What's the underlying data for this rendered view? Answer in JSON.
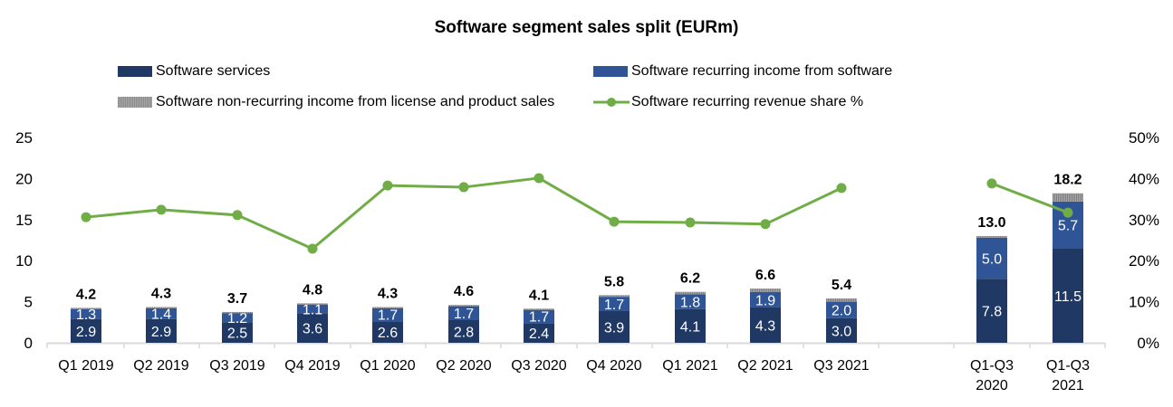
{
  "chart_data": {
    "type": "bar",
    "stacked": true,
    "title": "Software segment sales split (EURm)",
    "categories": [
      "Q1 2019",
      "Q2 2019",
      "Q3 2019",
      "Q4 2019",
      "Q1 2020",
      "Q2 2020",
      "Q3 2020",
      "Q4 2020",
      "Q1 2021",
      "Q2 2021",
      "Q3 2021",
      "Q1-Q3 2020",
      "Q1-Q3 2021"
    ],
    "series": [
      {
        "name": "Software services",
        "type": "bar",
        "color": "#203864",
        "values": [
          2.9,
          2.9,
          2.5,
          3.6,
          2.6,
          2.8,
          2.4,
          3.9,
          4.1,
          4.3,
          3.0,
          7.8,
          11.5
        ],
        "labels": [
          "2.9",
          "2.9",
          "2.5",
          "3.6",
          "2.6",
          "2.8",
          "2.4",
          "3.9",
          "4.1",
          "4.3",
          "3.0",
          "7.8",
          "11.5"
        ]
      },
      {
        "name": "Software recurring income from software",
        "type": "bar",
        "color": "#2F5597",
        "values": [
          1.3,
          1.4,
          1.2,
          1.1,
          1.7,
          1.7,
          1.7,
          1.7,
          1.8,
          1.9,
          2.0,
          5.0,
          5.7
        ],
        "labels": [
          "1.3",
          "1.4",
          "1.2",
          "1.1",
          "1.7",
          "1.7",
          "1.7",
          "1.7",
          "1.8",
          "1.9",
          "2.0",
          "5.0",
          "5.7"
        ]
      },
      {
        "name": "Software non-recurring income from license and product sales",
        "type": "bar",
        "color": "#8C8C8C",
        "values": [
          0.05,
          0.05,
          0.05,
          0.1,
          0.05,
          0.1,
          0.05,
          0.2,
          0.3,
          0.4,
          0.4,
          0.2,
          1.0
        ]
      },
      {
        "name": "Software recurring revenue share %",
        "type": "line",
        "axis": "right",
        "color": "#70AD47",
        "values": [
          30.6,
          32.4,
          31.1,
          22.9,
          38.3,
          37.9,
          40.1,
          29.5,
          29.3,
          28.9,
          37.7,
          38.8,
          31.7
        ]
      }
    ],
    "totals": [
      "4.2",
      "4.3",
      "3.7",
      "4.8",
      "4.3",
      "4.6",
      "4.1",
      "5.8",
      "6.2",
      "6.6",
      "5.4",
      "13.0",
      "18.2"
    ],
    "ylim": [
      0,
      25
    ],
    "yticks": [
      "0",
      "5",
      "10",
      "15",
      "20",
      "25"
    ],
    "y2lim": [
      0,
      50
    ],
    "y2ticks": [
      "0%",
      "10%",
      "20%",
      "30%",
      "40%",
      "50%"
    ],
    "xlabel": "",
    "ylabel": "",
    "grid": false,
    "legend_position": "top"
  }
}
